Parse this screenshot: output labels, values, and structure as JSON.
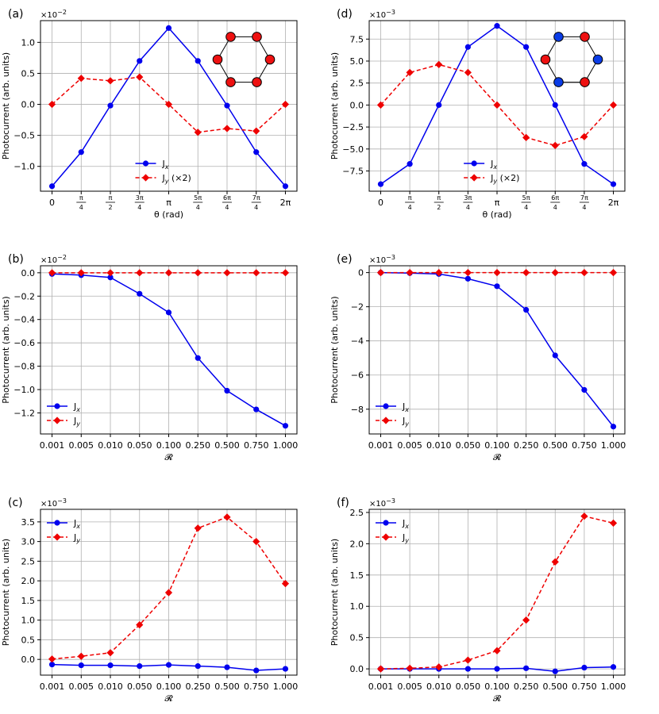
{
  "colors": {
    "Jx": "#0000ee",
    "Jy": "#ee0000",
    "grid": "#b0b0b0",
    "site_blue": "#0a3ce6",
    "site_red": "#ee1111"
  },
  "chart_data": [
    {
      "label": "(a)",
      "type": "line",
      "scale": "×10",
      "scale_exp": "−2",
      "xlabel": "θ (rad)",
      "ylabel": "Photocurrent (arb. units)",
      "x_ticks": [
        "0",
        "π/4",
        "π/2",
        "3π/4",
        "π",
        "5π/4",
        "6π/4",
        "7π/4",
        "2π"
      ],
      "y_ticks": [
        -1.0,
        -0.5,
        0.0,
        0.5,
        1.0
      ],
      "y_tick_labels": [
        "−1.0",
        "−0.5",
        "0.0",
        "0.5",
        "1.0"
      ],
      "ylim": [
        -1.4,
        1.35
      ],
      "legend_position": "bottom-center",
      "hexagon_sites": [
        "red",
        "red",
        "red",
        "red",
        "red",
        "red"
      ],
      "series": [
        {
          "name": "J",
          "sub": "x",
          "style": "solid",
          "marker": "circle",
          "values": [
            -1.32,
            -0.77,
            -0.02,
            0.7,
            1.23,
            0.7,
            -0.02,
            -0.77,
            -1.32
          ]
        },
        {
          "name": "J",
          "sub": "y",
          "suffix": " (×2)",
          "style": "dashed",
          "marker": "diamond",
          "values": [
            0.0,
            0.42,
            0.38,
            0.44,
            0.0,
            -0.45,
            -0.39,
            -0.43,
            0.0
          ]
        }
      ]
    },
    {
      "label": "(d)",
      "type": "line",
      "scale": "×10",
      "scale_exp": "−3",
      "xlabel": "θ (rad)",
      "ylabel": "Photocurrent (arb. units)",
      "x_ticks": [
        "0",
        "π/4",
        "π/2",
        "3π/4",
        "π",
        "5π/4",
        "6π/4",
        "7π/4",
        "2π"
      ],
      "y_ticks": [
        -7.5,
        -5.0,
        -2.5,
        0.0,
        2.5,
        5.0,
        7.5
      ],
      "y_tick_labels": [
        "−7.5",
        "−5.0",
        "−2.5",
        "0.0",
        "2.5",
        "5.0",
        "7.5"
      ],
      "ylim": [
        -9.8,
        9.6
      ],
      "legend_position": "bottom-center",
      "hexagon_sites": [
        "blue",
        "red",
        "blue",
        "red",
        "blue",
        "red"
      ],
      "series": [
        {
          "name": "J",
          "sub": "x",
          "style": "solid",
          "marker": "circle",
          "values": [
            -9.0,
            -6.7,
            0.0,
            6.6,
            9.0,
            6.6,
            0.0,
            -6.7,
            -9.0
          ]
        },
        {
          "name": "J",
          "sub": "y",
          "suffix": " (×2)",
          "style": "dashed",
          "marker": "diamond",
          "values": [
            0.0,
            3.7,
            4.6,
            3.7,
            0.0,
            -3.7,
            -4.6,
            -3.6,
            0.0
          ]
        }
      ]
    },
    {
      "label": "(b)",
      "type": "line",
      "scale": "×10",
      "scale_exp": "−2",
      "xlabel": "𝓡",
      "ylabel": "Photocurrent (arb. units)",
      "x_ticks": [
        "0.001",
        "0.005",
        "0.010",
        "0.050",
        "0.100",
        "0.250",
        "0.500",
        "0.750",
        "1.000"
      ],
      "y_ticks": [
        -1.2,
        -1.0,
        -0.8,
        -0.6,
        -0.4,
        -0.2,
        0.0
      ],
      "y_tick_labels": [
        "−1.2",
        "−1.0",
        "−0.8",
        "−0.6",
        "−0.4",
        "−0.2",
        "0.0"
      ],
      "ylim": [
        -1.38,
        0.06
      ],
      "legend_position": "bottom-left",
      "series": [
        {
          "name": "J",
          "sub": "x",
          "style": "solid",
          "marker": "circle",
          "values": [
            -0.01,
            -0.02,
            -0.04,
            -0.18,
            -0.34,
            -0.73,
            -1.01,
            -1.17,
            -1.31
          ]
        },
        {
          "name": "J",
          "sub": "y",
          "style": "dashed",
          "marker": "diamond",
          "values": [
            0,
            0,
            0,
            0,
            0,
            0,
            0,
            0,
            0
          ]
        }
      ]
    },
    {
      "label": "(e)",
      "type": "line",
      "scale": "×10",
      "scale_exp": "−3",
      "xlabel": "𝓡",
      "ylabel": "Photocurrent (arb. units)",
      "x_ticks": [
        "0.001",
        "0.005",
        "0.010",
        "0.050",
        "0.100",
        "0.250",
        "0.500",
        "0.750",
        "1.000"
      ],
      "y_ticks": [
        -8,
        -6,
        -4,
        -2,
        0
      ],
      "y_tick_labels": [
        "−8",
        "−6",
        "−4",
        "−2",
        "0"
      ],
      "ylim": [
        -9.45,
        0.4
      ],
      "legend_position": "bottom-left",
      "series": [
        {
          "name": "J",
          "sub": "x",
          "style": "solid",
          "marker": "circle",
          "values": [
            0.0,
            -0.03,
            -0.08,
            -0.36,
            -0.8,
            -2.18,
            -4.85,
            -6.87,
            -9.02
          ]
        },
        {
          "name": "J",
          "sub": "y",
          "style": "dashed",
          "marker": "diamond",
          "values": [
            0,
            0,
            0,
            0,
            0,
            0,
            0,
            0,
            0
          ]
        }
      ]
    },
    {
      "label": "(c)",
      "type": "line",
      "scale": "×10",
      "scale_exp": "−3",
      "xlabel": "𝓡",
      "ylabel": "Photocurrent (arb. units)",
      "x_ticks": [
        "0.001",
        "0.005",
        "0.010",
        "0.050",
        "0.100",
        "0.250",
        "0.500",
        "0.750",
        "1.000"
      ],
      "y_ticks": [
        0.0,
        0.5,
        1.0,
        1.5,
        2.0,
        2.5,
        3.0,
        3.5
      ],
      "y_tick_labels": [
        "0.0",
        "0.5",
        "1.0",
        "1.5",
        "2.0",
        "2.5",
        "3.0",
        "3.5"
      ],
      "ylim": [
        -0.4,
        3.82
      ],
      "legend_position": "top-left",
      "series": [
        {
          "name": "J",
          "sub": "x",
          "style": "solid",
          "marker": "circle",
          "values": [
            -0.13,
            -0.15,
            -0.15,
            -0.17,
            -0.14,
            -0.17,
            -0.2,
            -0.28,
            -0.24
          ]
        },
        {
          "name": "J",
          "sub": "y",
          "style": "dashed",
          "marker": "diamond",
          "values": [
            0.01,
            0.08,
            0.17,
            0.88,
            1.7,
            3.34,
            3.62,
            3.0,
            1.93
          ]
        }
      ]
    },
    {
      "label": "(f)",
      "type": "line",
      "scale": "×10",
      "scale_exp": "−3",
      "xlabel": "𝓡",
      "ylabel": "Photocurrent (arb. units)",
      "x_ticks": [
        "0.001",
        "0.005",
        "0.010",
        "0.050",
        "0.100",
        "0.250",
        "0.500",
        "0.750",
        "1.000"
      ],
      "y_ticks": [
        0.0,
        0.5,
        1.0,
        1.5,
        2.0,
        2.5
      ],
      "y_tick_labels": [
        "0.0",
        "0.5",
        "1.0",
        "1.5",
        "2.0",
        "2.5"
      ],
      "ylim": [
        -0.1,
        2.55
      ],
      "legend_position": "top-left",
      "series": [
        {
          "name": "J",
          "sub": "x",
          "style": "solid",
          "marker": "circle",
          "values": [
            0.0,
            0.0,
            0.0,
            0.0,
            0.0,
            0.01,
            -0.04,
            0.02,
            0.03
          ]
        },
        {
          "name": "J",
          "sub": "y",
          "style": "dashed",
          "marker": "diamond",
          "values": [
            0.0,
            0.01,
            0.03,
            0.14,
            0.29,
            0.78,
            1.71,
            2.44,
            2.33
          ]
        }
      ]
    }
  ]
}
